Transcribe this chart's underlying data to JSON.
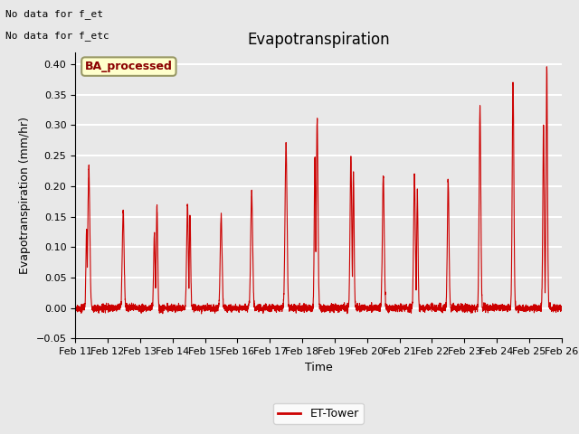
{
  "title": "Evapotranspiration",
  "ylabel": "Evapotranspiration (mm/hr)",
  "xlabel": "Time",
  "ylim": [
    -0.05,
    0.42
  ],
  "yticks": [
    -0.05,
    0.0,
    0.05,
    0.1,
    0.15,
    0.2,
    0.25,
    0.3,
    0.35,
    0.4
  ],
  "xtick_labels": [
    "Feb 11",
    "Feb 12",
    "Feb 13",
    "Feb 14",
    "Feb 15",
    "Feb 16",
    "Feb 17",
    "Feb 18",
    "Feb 19",
    "Feb 20",
    "Feb 21",
    "Feb 22",
    "Feb 23",
    "Feb 24",
    "Feb 25",
    "Feb 26"
  ],
  "line_color": "#cc0000",
  "line_width": 0.8,
  "background_color": "#e8e8e8",
  "plot_bg_color": "#e8e8e8",
  "grid_color": "#ffffff",
  "legend_label": "ET-Tower",
  "legend_box_color": "#ffffcc",
  "legend_box_edge": "#999966",
  "annotation1": "No data for f_et",
  "annotation2": "No data for f_etc",
  "box_label": "BA_processed",
  "title_fontsize": 12,
  "axis_fontsize": 9,
  "tick_fontsize": 8
}
